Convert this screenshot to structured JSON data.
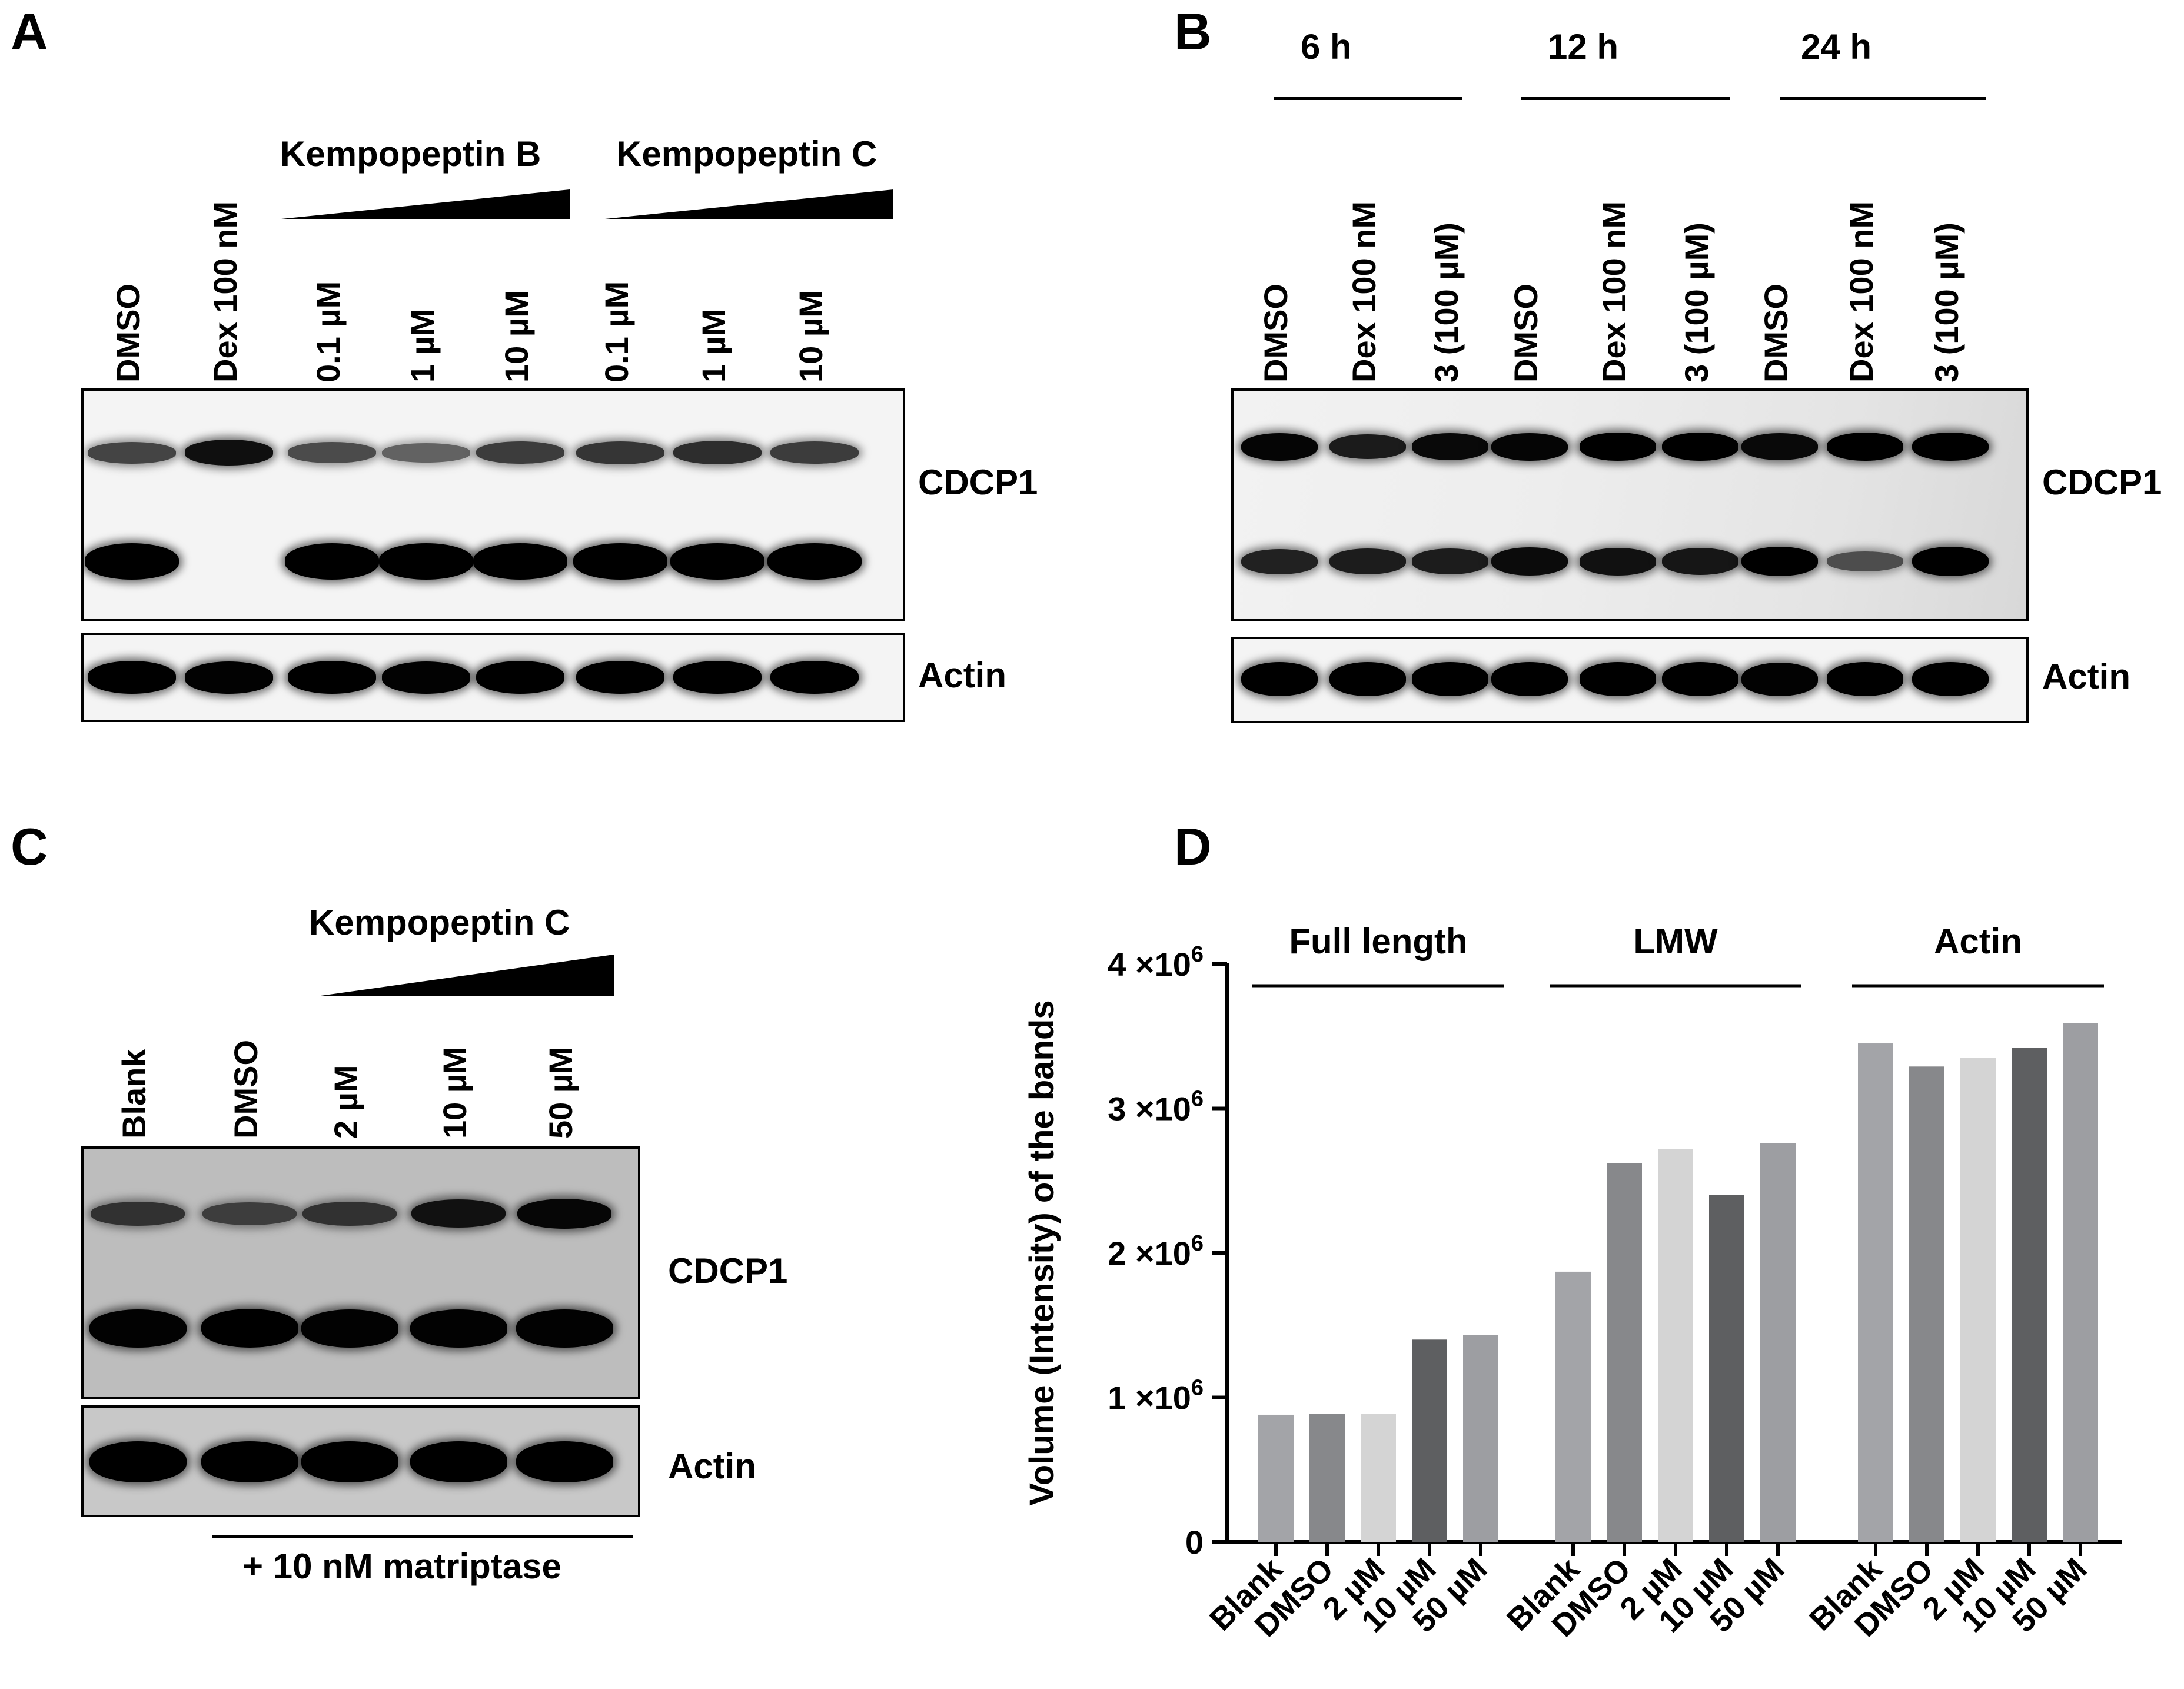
{
  "panelA": {
    "letter": "A",
    "group_b": "Kempopeptin B",
    "group_c": "Kempopeptin C",
    "lanes": [
      "DMSO",
      "Dex 100 nM",
      "0.1 µM",
      "1 µM",
      "10 µM",
      "0.1 µM",
      "1 µM",
      "10 µM"
    ],
    "cdcp1_label": "CDCP1",
    "actin_label": "Actin",
    "upper_band_intensity": [
      0.55,
      0.9,
      0.5,
      0.35,
      0.6,
      0.65,
      0.7,
      0.6
    ],
    "lower_band_intensity": [
      1.0,
      0.0,
      1.0,
      1.0,
      1.0,
      1.0,
      1.0,
      1.0
    ],
    "actin_intensity": [
      1.0,
      0.95,
      1.0,
      0.95,
      1.0,
      1.0,
      1.0,
      1.0
    ]
  },
  "panelB": {
    "letter": "B",
    "times": [
      "6 h",
      "12 h",
      "24 h"
    ],
    "lanes": [
      "DMSO",
      "Dex 100 nM",
      "3 (100 µM)",
      "DMSO",
      "Dex 100 nM",
      "3 (100 µM)",
      "DMSO",
      "Dex 100 nM",
      "3 (100 µM)"
    ],
    "cdcp1_label": "CDCP1",
    "actin_label": "Actin",
    "upper_band_intensity": [
      0.95,
      0.7,
      0.9,
      0.95,
      1.0,
      1.0,
      0.9,
      1.0,
      1.0
    ],
    "lower_band_intensity": [
      0.7,
      0.75,
      0.75,
      0.9,
      0.85,
      0.8,
      1.0,
      0.3,
      1.0
    ],
    "actin_intensity": [
      1.0,
      1.0,
      1.0,
      1.0,
      1.0,
      1.0,
      0.95,
      1.0,
      1.0
    ]
  },
  "panelC": {
    "letter": "C",
    "group": "Kempopeptin C",
    "lanes": [
      "Blank",
      "DMSO",
      "2 µM",
      "10 µM",
      "50 µM"
    ],
    "cdcp1_label": "CDCP1",
    "actin_label": "Actin",
    "footer": "+ 10 nM matriptase",
    "upper_band_intensity": [
      0.55,
      0.45,
      0.55,
      0.85,
      0.95
    ],
    "lower_band_intensity": [
      0.95,
      1.0,
      0.95,
      0.95,
      0.95
    ],
    "actin_intensity": [
      1.0,
      1.0,
      1.0,
      1.0,
      1.0
    ]
  },
  "chart_data": {
    "type": "bar",
    "letter": "D",
    "ylabel": "Volume (Intensity) of the bands",
    "ylim": [
      0,
      4000000
    ],
    "yticks": [
      {
        "value": 0,
        "label": "0"
      },
      {
        "value": 1000000,
        "label": "1×10^6"
      },
      {
        "value": 2000000,
        "label": "2×10^6"
      },
      {
        "value": 3000000,
        "label": "3×10^6"
      },
      {
        "value": 4000000,
        "label": "4×10^6"
      }
    ],
    "categories": [
      "Blank",
      "DMSO",
      "2 µM",
      "10 µM",
      "50 µM"
    ],
    "colors": [
      "#a3a4a8",
      "#87888b",
      "#d4d4d4",
      "#5e5f61",
      "#9d9ea2"
    ],
    "groups": [
      {
        "name": "Full length",
        "values": [
          880000,
          885000,
          885000,
          1400000,
          1430000
        ]
      },
      {
        "name": "LMW",
        "values": [
          1870000,
          2620000,
          2720000,
          2400000,
          2760000
        ]
      },
      {
        "name": "Actin",
        "values": [
          3450000,
          3290000,
          3350000,
          3420000,
          3590000
        ]
      }
    ],
    "grid": false,
    "legend": "none"
  }
}
